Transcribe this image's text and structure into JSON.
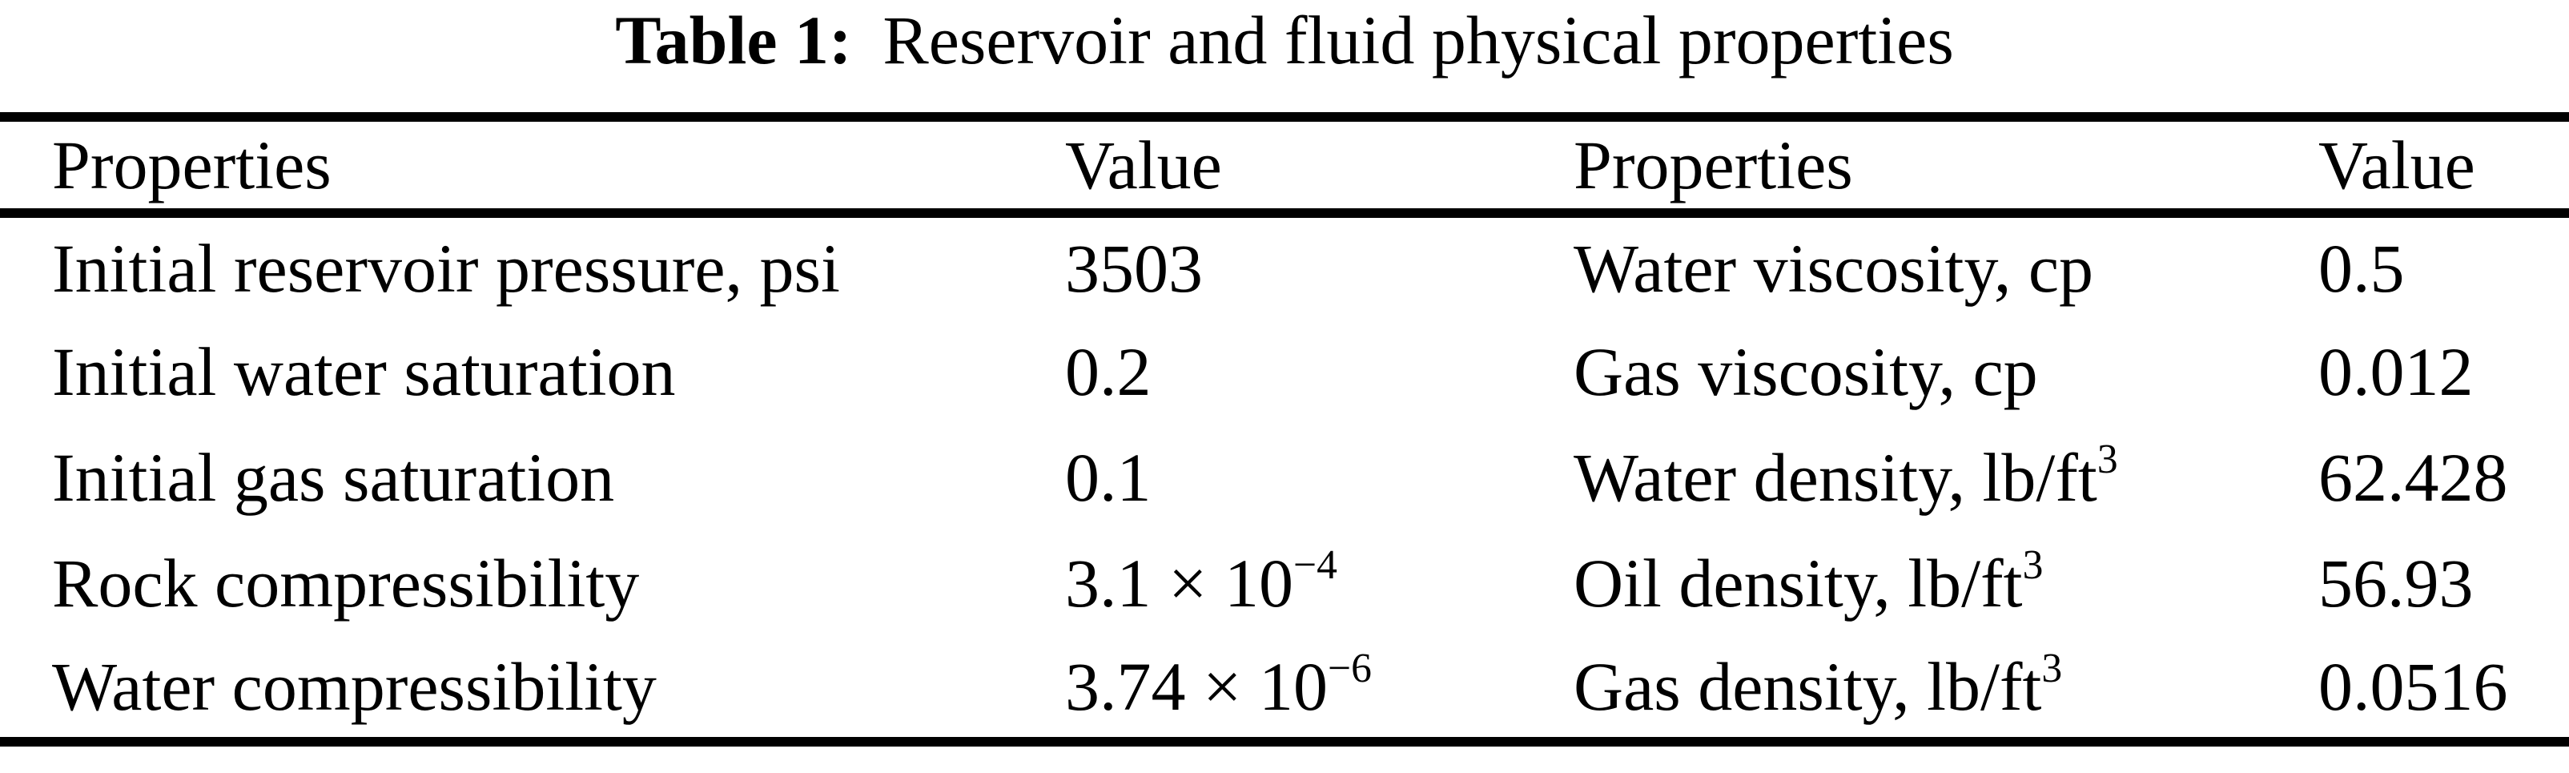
{
  "page": {
    "background_color": "#ffffff",
    "text_color": "#000000"
  },
  "title": {
    "label": "Table 1:",
    "text": "Reservoir and fluid physical properties"
  },
  "table": {
    "headers": {
      "col1": "Properties",
      "col2": "Value",
      "col3": "Properties",
      "col4": "Value"
    },
    "rows": [
      {
        "p1": "Initial reservoir pressure, psi",
        "v1": "3503",
        "p2": "Water viscosity, cp",
        "v2": "0.5"
      },
      {
        "p1": "Initial water saturation",
        "v1": "0.2",
        "p2": "Gas viscosity, cp",
        "v2": "0.012"
      },
      {
        "p1": "Initial gas saturation",
        "v1": "0.1",
        "p2": "Water density, lb/ft",
        "p2_sup": "3",
        "v2": "62.428"
      },
      {
        "p1": "Rock compressibility",
        "v1": "3.1 × 10",
        "v1_sup": "−4",
        "p2": "Oil density, lb/ft",
        "p2_sup": "3",
        "v2": "56.93"
      },
      {
        "p1": "Water compressibility",
        "v1": "3.74 × 10",
        "v1_sup": "−6",
        "p2": "Gas density, lb/ft",
        "p2_sup": "3",
        "v2": "0.0516"
      }
    ]
  }
}
